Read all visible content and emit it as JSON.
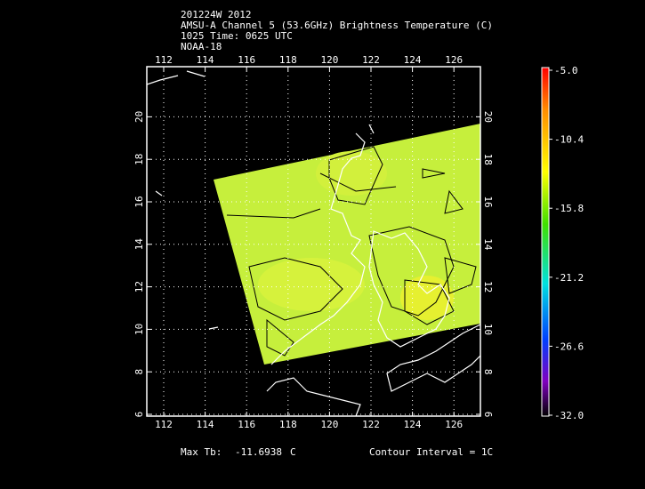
{
  "header": {
    "lines": [
      "201224W 2012",
      "AMSU-A Channel 5 (53.6GHz) Brightness Temperature (C)",
      "1025 Time: 0625 UTC",
      "NOAA-18"
    ]
  },
  "map": {
    "lon_ticks": [
      112,
      114,
      116,
      118,
      120,
      122,
      124,
      126
    ],
    "lat_ticks": [
      6,
      8,
      10,
      12,
      14,
      16,
      18,
      20
    ]
  },
  "colorbar": {
    "labels": [
      "-5.0",
      "-10.4",
      "-15.8",
      "-21.2",
      "-26.6",
      "-32.0"
    ]
  },
  "footer": {
    "max_label": "Max Tb:",
    "max_value": "-11.6938",
    "unit": "C",
    "contour": "Contour Interval = 1C"
  }
}
